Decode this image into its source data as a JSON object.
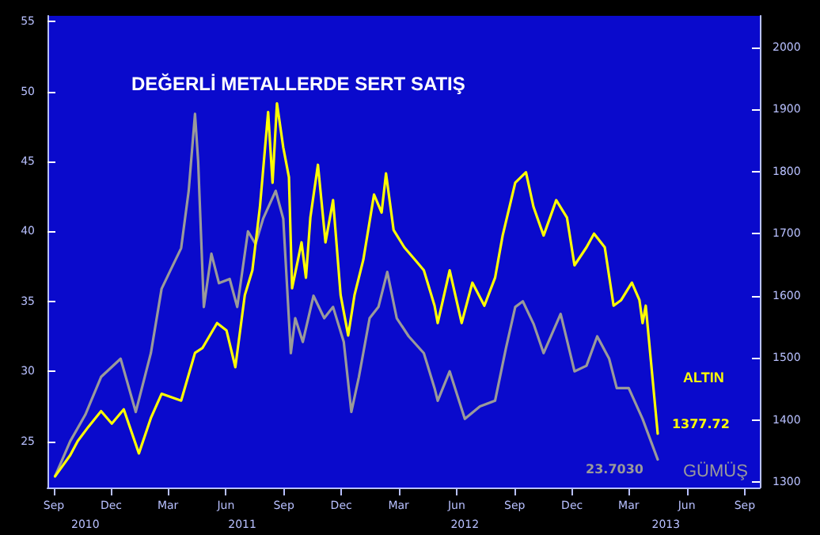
{
  "chart_data": {
    "type": "line",
    "title": "DEĞERLİ METALLERDE SERT SATIŞ",
    "xlim": [
      "2010-08-22",
      "2013-09-25"
    ],
    "xticks": [
      {
        "value": "2010-09-01",
        "label": "Sep"
      },
      {
        "value": "2010-12-01",
        "label": "Dec"
      },
      {
        "value": "2011-03-01",
        "label": "Mar"
      },
      {
        "value": "2011-06-01",
        "label": "Jun"
      },
      {
        "value": "2011-09-01",
        "label": "Sep"
      },
      {
        "value": "2011-12-01",
        "label": "Dec"
      },
      {
        "value": "2012-03-01",
        "label": "Mar"
      },
      {
        "value": "2012-06-01",
        "label": "Jun"
      },
      {
        "value": "2012-09-01",
        "label": "Sep"
      },
      {
        "value": "2012-12-01",
        "label": "Dec"
      },
      {
        "value": "2013-03-01",
        "label": "Mar"
      },
      {
        "value": "2013-06-01",
        "label": "Jun"
      },
      {
        "value": "2013-09-01",
        "label": "Sep"
      }
    ],
    "x2lim": [
      "2010-08-22",
      "2013-09-25"
    ],
    "x2ticks": [
      {
        "value": "2010-10-21",
        "label": "2010"
      },
      {
        "value": "2011-06-27",
        "label": "2011"
      },
      {
        "value": "2012-06-14",
        "label": "2012"
      },
      {
        "value": "2013-04-29",
        "label": "2013"
      }
    ],
    "ylim": [
      21.7,
      55.4
    ],
    "yticks": [
      25,
      30,
      35,
      40,
      45,
      50,
      55
    ],
    "y2lim": [
      1291,
      2051
    ],
    "y2ticks": [
      1300,
      1400,
      1500,
      1600,
      1700,
      1800,
      1900,
      2000
    ],
    "grid": false,
    "legend": false,
    "marker": "none",
    "line_style": "solid",
    "series": [
      {
        "name": "GÜMÜŞ",
        "color": "#9a9a9a",
        "x": [
          "2010-09-03",
          "2010-09-27",
          "2010-10-21",
          "2010-11-15",
          "2010-12-16",
          "2011-01-09",
          "2011-02-02",
          "2011-02-19",
          "2011-03-08",
          "2011-03-22",
          "2011-04-03",
          "2011-04-13",
          "2011-04-18",
          "2011-04-27",
          "2011-05-09",
          "2011-05-21",
          "2011-06-07",
          "2011-06-19",
          "2011-07-06",
          "2011-07-18",
          "2011-07-30",
          "2011-08-19",
          "2011-08-31",
          "2011-09-12",
          "2011-09-19",
          "2011-10-01",
          "2011-10-18",
          "2011-11-04",
          "2011-11-18",
          "2011-12-05",
          "2011-12-17",
          "2011-12-29",
          "2012-01-15",
          "2012-01-29",
          "2012-02-12",
          "2012-02-27",
          "2012-03-17",
          "2012-04-10",
          "2012-04-27",
          "2012-05-02",
          "2012-05-21",
          "2012-06-14",
          "2012-07-08",
          "2012-08-01",
          "2012-08-18",
          "2012-09-02",
          "2012-09-14",
          "2012-10-01",
          "2012-10-17",
          "2012-11-13",
          "2012-12-05",
          "2012-12-24",
          "2013-01-10",
          "2013-01-29",
          "2013-02-10",
          "2013-03-01",
          "2013-03-23",
          "2013-04-16"
        ],
        "values": [
          22.5,
          25,
          26.9,
          29.6,
          30.9,
          27.1,
          31.3,
          35.9,
          37.5,
          38.8,
          42.9,
          48.4,
          45,
          34.6,
          38.4,
          36.3,
          36.6,
          34.6,
          40,
          39.1,
          40.9,
          42.9,
          40.9,
          31.3,
          33.8,
          32.1,
          35.4,
          33.8,
          34.6,
          32.1,
          27.1,
          29.6,
          33.8,
          34.6,
          37.1,
          33.8,
          32.5,
          31.3,
          28.8,
          27.9,
          30,
          26.6,
          27.5,
          27.9,
          31.6,
          34.6,
          35,
          33.4,
          31.3,
          34.1,
          30,
          30.4,
          32.5,
          30.9,
          28.8,
          28.8,
          26.6,
          23.703
        ],
        "value_labels": [
          null,
          null,
          null,
          null,
          null,
          null,
          null,
          null,
          null,
          null,
          null,
          null,
          null,
          null,
          null,
          null,
          null,
          null,
          null,
          null,
          null,
          null,
          null,
          null,
          null,
          null,
          null,
          null,
          null,
          null,
          null,
          null,
          null,
          null,
          null,
          null,
          null,
          null,
          null,
          null,
          null,
          null,
          null,
          null,
          null,
          null,
          null,
          null,
          null,
          null,
          null,
          null,
          null,
          null,
          null,
          null,
          null,
          "23.7030"
        ]
      },
      {
        "name": "ALTIN",
        "color": "#ffff00",
        "axis": "y2",
        "x": [
          "2010-09-03",
          "2010-09-27",
          "2010-10-09",
          "2010-10-26",
          "2010-11-15",
          "2010-12-02",
          "2010-12-21",
          "2011-01-14",
          "2011-02-02",
          "2011-02-19",
          "2011-03-22",
          "2011-04-13",
          "2011-04-25",
          "2011-05-18",
          "2011-06-02",
          "2011-06-16",
          "2011-07-01",
          "2011-07-13",
          "2011-07-25",
          "2011-08-07",
          "2011-08-14",
          "2011-08-21",
          "2011-08-31",
          "2011-09-09",
          "2011-09-14",
          "2011-09-29",
          "2011-10-06",
          "2011-10-13",
          "2011-10-25",
          "2011-11-06",
          "2011-11-18",
          "2011-11-30",
          "2011-12-12",
          "2011-12-22",
          "2012-01-05",
          "2012-01-22",
          "2012-02-03",
          "2012-02-10",
          "2012-02-22",
          "2012-03-10",
          "2012-03-27",
          "2012-04-10",
          "2012-04-27",
          "2012-05-02",
          "2012-05-21",
          "2012-06-09",
          "2012-06-26",
          "2012-07-15",
          "2012-08-01",
          "2012-08-13",
          "2012-09-02",
          "2012-09-19",
          "2012-10-01",
          "2012-10-17",
          "2012-11-06",
          "2012-11-23",
          "2012-12-05",
          "2012-12-24",
          "2013-01-05",
          "2013-01-22",
          "2013-02-05",
          "2013-02-17",
          "2013-03-06",
          "2013-03-18",
          "2013-03-23",
          "2013-03-28",
          "2013-04-16"
        ],
        "values": [
          1309,
          1343,
          1366,
          1389,
          1414,
          1394,
          1417,
          1346,
          1403,
          1442,
          1431,
          1508,
          1516,
          1556,
          1544,
          1485,
          1601,
          1641,
          1743,
          1896,
          1782,
          1910,
          1839,
          1791,
          1612,
          1686,
          1629,
          1726,
          1811,
          1686,
          1754,
          1601,
          1536,
          1601,
          1658,
          1763,
          1734,
          1797,
          1706,
          1678,
          1658,
          1641,
          1584,
          1556,
          1641,
          1556,
          1621,
          1584,
          1629,
          1697,
          1782,
          1799,
          1743,
          1697,
          1754,
          1726,
          1649,
          1678,
          1700,
          1678,
          1584,
          1593,
          1621,
          1593,
          1556,
          1584,
          1377.72
        ],
        "value_labels": [
          null,
          null,
          null,
          null,
          null,
          null,
          null,
          null,
          null,
          null,
          null,
          null,
          null,
          null,
          null,
          null,
          null,
          null,
          null,
          null,
          null,
          null,
          null,
          null,
          null,
          null,
          null,
          null,
          null,
          null,
          null,
          null,
          null,
          null,
          null,
          null,
          null,
          null,
          null,
          null,
          null,
          null,
          null,
          null,
          null,
          null,
          null,
          null,
          null,
          null,
          null,
          null,
          null,
          null,
          null,
          null,
          null,
          null,
          null,
          null,
          null,
          null,
          null,
          null,
          null,
          null,
          "1377.72"
        ]
      }
    ]
  }
}
